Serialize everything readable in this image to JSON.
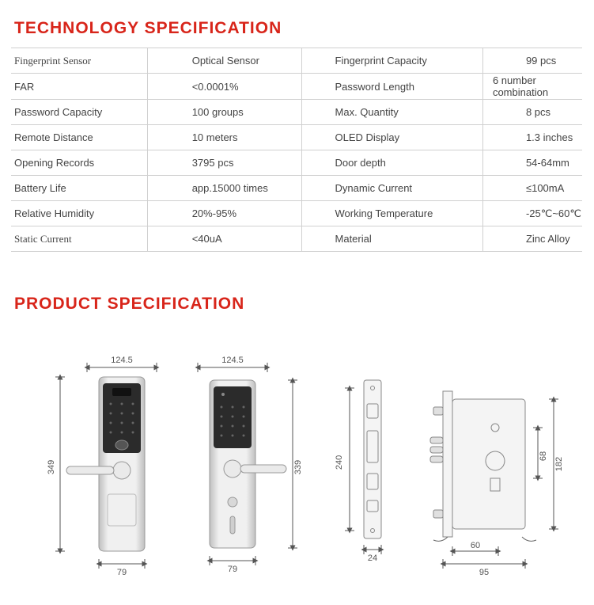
{
  "titles": {
    "tech": "TECHNOLOGY SPECIFICATION",
    "prod": "PRODUCT SPECIFICATION"
  },
  "spec_rows": [
    {
      "l1": "Fingerprint Sensor",
      "v1": "Optical Sensor",
      "l2": "Fingerprint Capacity",
      "v2": "99 pcs",
      "emph": true
    },
    {
      "l1": "FAR",
      "v1": "<0.0001%",
      "l2": "Password Length",
      "v2": "6 number combination"
    },
    {
      "l1": "Password Capacity",
      "v1": "100 groups",
      "l2": "Max. Quantity",
      "v2": "8 pcs"
    },
    {
      "l1": "Remote Distance",
      "v1": "10 meters",
      "l2": "OLED  Display",
      "v2": "1.3 inches"
    },
    {
      "l1": "Opening Records",
      "v1": "3795 pcs",
      "l2": "Door depth",
      "v2": "54-64mm"
    },
    {
      "l1": "Battery Life",
      "v1": "app.15000 times",
      "l2": "Dynamic Current",
      "v2": "≤100mA"
    },
    {
      "l1": "Relative Humidity",
      "v1": "20%-95%",
      "l2": "Working Temperature",
      "v2": "-25℃~60℃"
    },
    {
      "l1": "Static Current",
      "v1": "<40uA",
      "l2": "Material",
      "v2": "Zinc Alloy",
      "emph": true
    }
  ],
  "diagram": {
    "front": {
      "width": "124.5",
      "height": "349",
      "base": "79"
    },
    "back": {
      "width": "124.5",
      "height": "339",
      "base": "79"
    },
    "strike": {
      "height": "240",
      "base": "24"
    },
    "mortise": {
      "h1": "68",
      "h2": "182",
      "w1": "60",
      "w2": "95"
    },
    "colors": {
      "metal_light": "#e8e8e8",
      "metal_dark": "#bfbfbf",
      "panel": "#2b2b2b",
      "line": "#555555",
      "bg": "#ffffff"
    }
  }
}
